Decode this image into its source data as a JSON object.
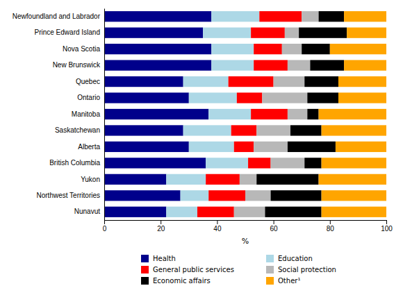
{
  "chart_data": {
    "type": "bar",
    "orientation": "horizontal",
    "stacked": true,
    "categories": [
      "Newfoundland and Labrador",
      "Prince Edward Island",
      "Nova Scotia",
      "New Brunswick",
      "Quebec",
      "Ontario",
      "Manitoba",
      "Saskatchewan",
      "Alberta",
      "British Columbia",
      "Yukon",
      "Northwest Territories",
      "Nunavut"
    ],
    "series": [
      {
        "name": "Health",
        "color": "#00008B",
        "values": [
          38,
          35,
          38,
          38,
          28,
          30,
          37,
          28,
          30,
          36,
          22,
          27,
          22
        ]
      },
      {
        "name": "Education",
        "color": "#ADD8E6",
        "values": [
          17,
          17,
          15,
          15,
          16,
          17,
          15,
          17,
          16,
          15,
          14,
          10,
          11
        ]
      },
      {
        "name": "General public services",
        "color": "#FF0000",
        "values": [
          15,
          12,
          10,
          12,
          16,
          9,
          13,
          9,
          7,
          8,
          12,
          13,
          13
        ]
      },
      {
        "name": "Social protection",
        "color": "#B8B8B8",
        "values": [
          6,
          5,
          7,
          8,
          11,
          16,
          7,
          12,
          12,
          12,
          6,
          9,
          11
        ]
      },
      {
        "name": "Economic affairs",
        "color": "#000000",
        "values": [
          9,
          17,
          10,
          12,
          12,
          11,
          4,
          11,
          17,
          6,
          22,
          18,
          20
        ]
      },
      {
        "name": "Other¹",
        "color": "#FFA500",
        "values": [
          15,
          14,
          20,
          15,
          17,
          17,
          24,
          23,
          18,
          23,
          24,
          23,
          23
        ]
      }
    ],
    "xlabel": "%",
    "xlim": [
      0,
      100
    ],
    "xticks": [
      0,
      20,
      40,
      60,
      80,
      100
    ],
    "legend": "bottom"
  }
}
